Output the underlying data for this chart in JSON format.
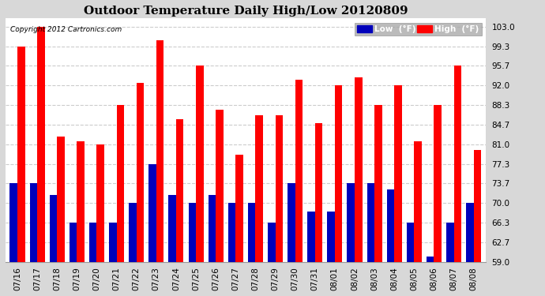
{
  "title": "Outdoor Temperature Daily High/Low 20120809",
  "copyright": "Copyright 2012 Cartronics.com",
  "legend_low": "Low  (°F)",
  "legend_high": "High  (°F)",
  "categories": [
    "07/16",
    "07/17",
    "07/18",
    "07/19",
    "07/20",
    "07/21",
    "07/22",
    "07/23",
    "07/24",
    "07/25",
    "07/26",
    "07/27",
    "07/28",
    "07/29",
    "07/30",
    "07/31",
    "08/01",
    "08/02",
    "08/03",
    "08/04",
    "08/05",
    "08/06",
    "08/07",
    "08/08"
  ],
  "high_values": [
    99.3,
    103.0,
    82.5,
    81.5,
    81.0,
    88.3,
    92.5,
    100.5,
    85.7,
    95.7,
    87.5,
    79.0,
    86.5,
    86.5,
    93.0,
    85.0,
    92.0,
    93.5,
    88.3,
    92.0,
    81.5,
    88.3,
    95.7,
    80.0
  ],
  "low_values": [
    73.7,
    73.7,
    71.5,
    66.3,
    66.3,
    66.3,
    70.0,
    77.3,
    71.5,
    70.0,
    71.5,
    70.0,
    70.0,
    66.3,
    73.7,
    68.5,
    68.5,
    73.7,
    73.7,
    72.5,
    66.3,
    60.0,
    66.3,
    70.0
  ],
  "ylim_min": 59.0,
  "ylim_max": 104.5,
  "yticks": [
    59.0,
    62.7,
    66.3,
    70.0,
    73.7,
    77.3,
    81.0,
    84.7,
    88.3,
    92.0,
    95.7,
    99.3,
    103.0
  ],
  "bar_color_high": "#ff0000",
  "bar_color_low": "#0000bb",
  "bg_color": "#d8d8d8",
  "plot_bg_color": "#ffffff",
  "grid_color": "#cccccc",
  "title_fontsize": 11,
  "tick_fontsize": 7.5,
  "bar_width": 0.38
}
